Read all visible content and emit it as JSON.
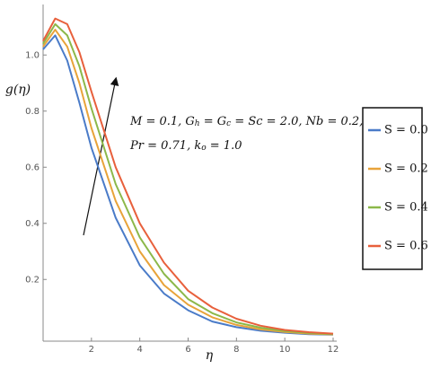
{
  "chart_data": {
    "type": "line",
    "y_label": "g(η)",
    "x_label": "η",
    "x": [
      0,
      0.5,
      1,
      1.5,
      2,
      3,
      4,
      5,
      6,
      7,
      8,
      9,
      10,
      11,
      12
    ],
    "series": [
      {
        "name": "S = 0.0",
        "color": "#4a7bc8",
        "values": [
          1.02,
          1.07,
          0.98,
          0.83,
          0.67,
          0.42,
          0.25,
          0.15,
          0.09,
          0.05,
          0.03,
          0.017,
          0.01,
          0.005,
          0.003
        ]
      },
      {
        "name": "S = 0.2",
        "color": "#e8a33a",
        "values": [
          1.03,
          1.09,
          1.03,
          0.9,
          0.74,
          0.48,
          0.3,
          0.18,
          0.11,
          0.065,
          0.038,
          0.022,
          0.013,
          0.007,
          0.004
        ]
      },
      {
        "name": "S = 0.4",
        "color": "#8cb84a",
        "values": [
          1.04,
          1.11,
          1.07,
          0.96,
          0.81,
          0.54,
          0.35,
          0.22,
          0.13,
          0.08,
          0.047,
          0.028,
          0.016,
          0.009,
          0.005
        ]
      },
      {
        "name": "S = 0.6",
        "color": "#e8603c",
        "values": [
          1.05,
          1.13,
          1.11,
          1.01,
          0.87,
          0.6,
          0.4,
          0.26,
          0.16,
          0.1,
          0.06,
          0.035,
          0.02,
          0.012,
          0.007
        ]
      }
    ],
    "xlim": [
      0,
      12
    ],
    "xticks": [
      2,
      4,
      6,
      8,
      10,
      12
    ],
    "ylim": [
      -0.02,
      1.18
    ],
    "yticks": [
      0.2,
      0.4,
      0.6,
      0.8,
      {
        "value": 1,
        "label": "1.0"
      }
    ],
    "legend": "right",
    "annotation": [
      [
        {
          "text": "M = 0.1, G"
        },
        {
          "sub": "h"
        },
        {
          "text": " = G"
        },
        {
          "sub": "c"
        },
        {
          "text": " = Sc = 2.0, Nb = 0.2,"
        }
      ],
      [
        {
          "text": "Pr = 0.71, k"
        },
        {
          "sub": "o"
        },
        {
          "text": " = 1.0"
        }
      ]
    ]
  }
}
